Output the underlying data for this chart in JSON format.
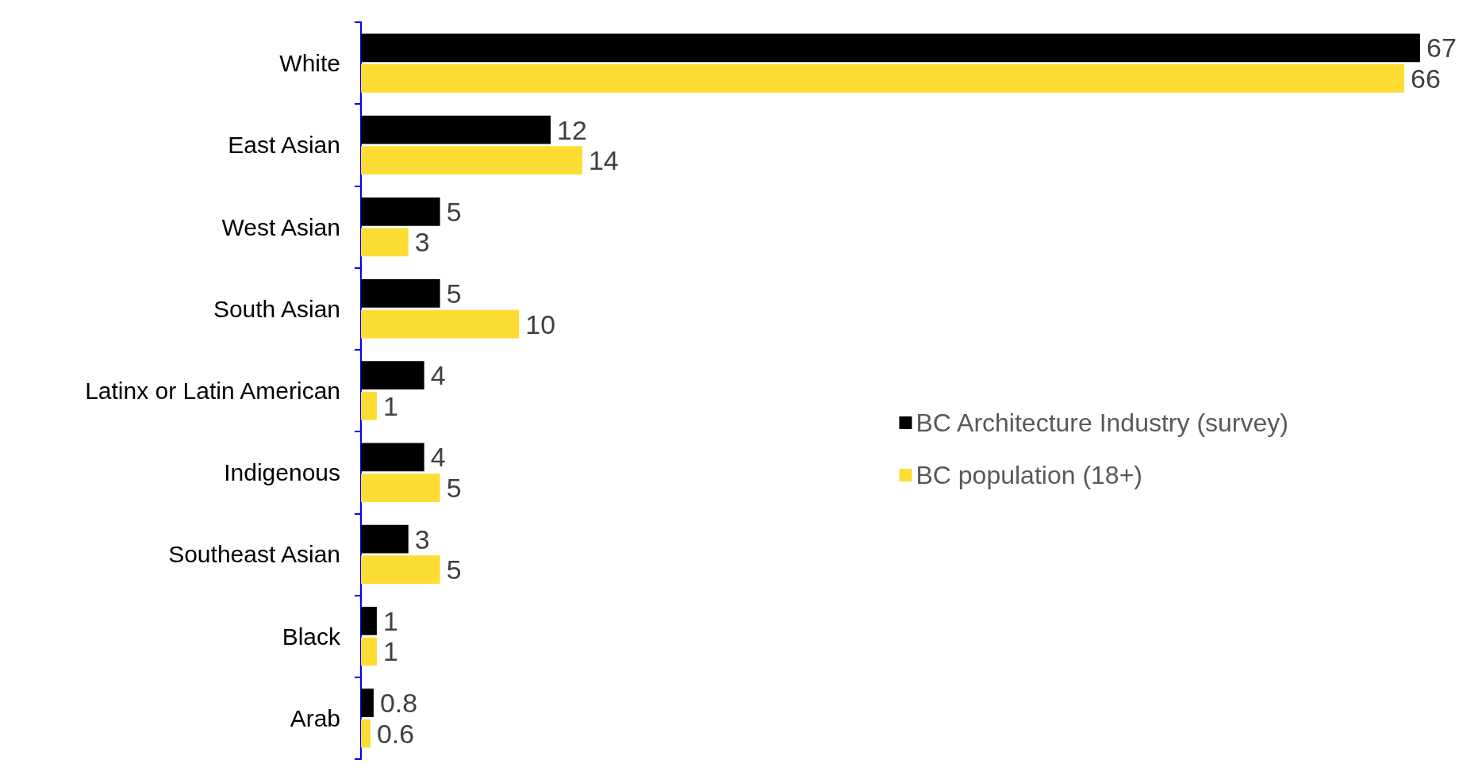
{
  "chart_data": {
    "type": "bar",
    "orientation": "horizontal",
    "data_labels": true,
    "legend": "right",
    "categories": [
      "White",
      "East Asian",
      "West Asian",
      "South Asian",
      "Latinx or Latin American",
      "Indigenous",
      "Southeast Asian",
      "Black",
      "Arab"
    ],
    "series": [
      {
        "name": "BC Architecture Industry (survey)",
        "color": "#000000",
        "values": [
          67,
          12,
          5,
          5,
          4,
          4,
          3,
          1,
          0.8
        ]
      },
      {
        "name": "BC population (18+)",
        "color": "#fddd33",
        "values": [
          66,
          14,
          3,
          10,
          1,
          5,
          5,
          1,
          0.6
        ]
      }
    ]
  }
}
